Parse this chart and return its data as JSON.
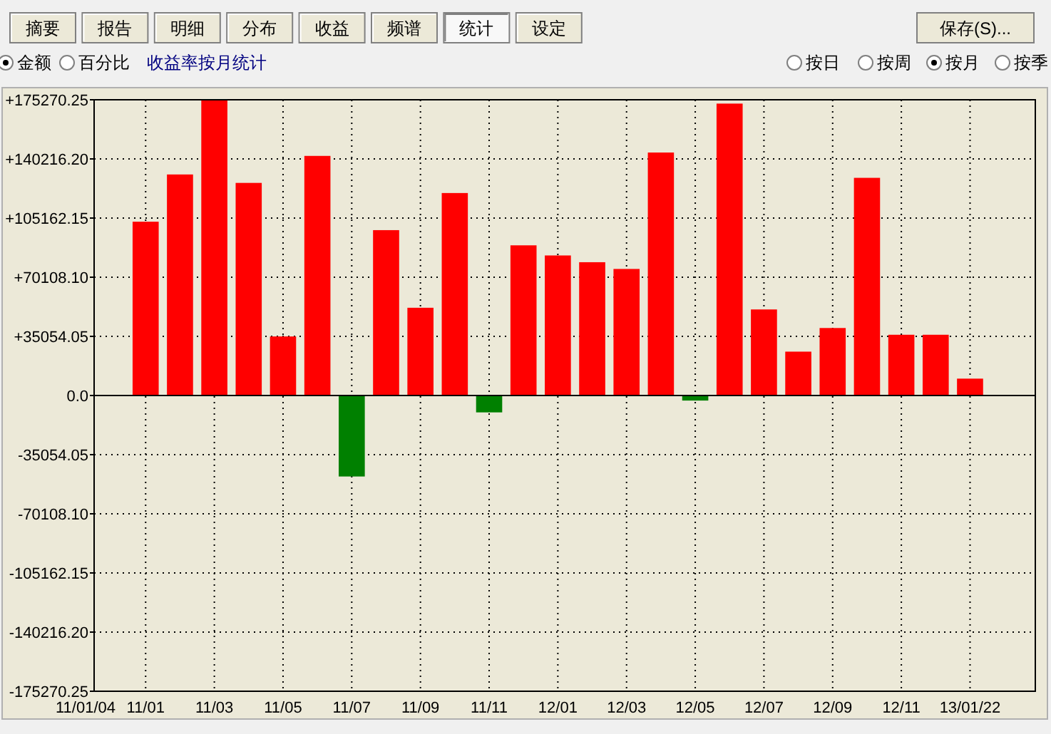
{
  "chart_data": {
    "type": "bar",
    "title": "收益率按月统计",
    "categories": [
      "11/01",
      null,
      "11/03",
      null,
      "11/05",
      null,
      "11/07",
      null,
      "11/09",
      null,
      "11/11",
      null,
      "12/01",
      null,
      "12/03",
      null,
      "12/05",
      null,
      "12/07",
      null,
      "12/09",
      null,
      "12/11",
      null,
      "13/01/22"
    ],
    "values": [
      103000,
      131000,
      175000,
      126000,
      35000,
      142000,
      -48000,
      98000,
      52000,
      120000,
      -10000,
      89000,
      83000,
      79000,
      75000,
      144000,
      -3000,
      173000,
      51000,
      26000,
      40000,
      129000,
      36000,
      36000,
      10000
    ],
    "colors": [
      "#ff0000",
      "#ff0000",
      "#ff0000",
      "#ff0000",
      "#ff0000",
      "#ff0000",
      "#008000",
      "#ff0000",
      "#ff0000",
      "#ff0000",
      "#008000",
      "#ff0000",
      "#ff0000",
      "#ff0000",
      "#ff0000",
      "#ff0000",
      "#008000",
      "#ff0000",
      "#ff0000",
      "#ff0000",
      "#ff0000",
      "#ff0000",
      "#ff0000",
      "#ff0000",
      "#ff0000"
    ],
    "ylim": [
      -175270.25,
      175270.25
    ],
    "yticks": [
      {
        "value": 175270.25,
        "label": "+175270.25"
      },
      {
        "value": 140216.2,
        "label": "+140216.20"
      },
      {
        "value": 105162.15,
        "label": "+105162.15"
      },
      {
        "value": 70108.1,
        "label": "+70108.10"
      },
      {
        "value": 35054.05,
        "label": "+35054.05"
      },
      {
        "value": 0,
        "label": "0.0"
      },
      {
        "value": -35054.05,
        "label": "-35054.05"
      },
      {
        "value": -70108.1,
        "label": "-70108.10"
      },
      {
        "value": -105162.15,
        "label": "-105162.15"
      },
      {
        "value": -140216.2,
        "label": "-140216.20"
      },
      {
        "value": -175270.25,
        "label": "-175270.25"
      }
    ],
    "grid": true,
    "annotations": [
      "11/01/04",
      "摘要",
      "报告",
      "明细",
      "分布",
      "收益",
      "频谱",
      "统计",
      "设定",
      "保存(S)...",
      "金额",
      "百分比",
      "按日",
      "按周",
      "按月",
      "按季"
    ]
  }
}
